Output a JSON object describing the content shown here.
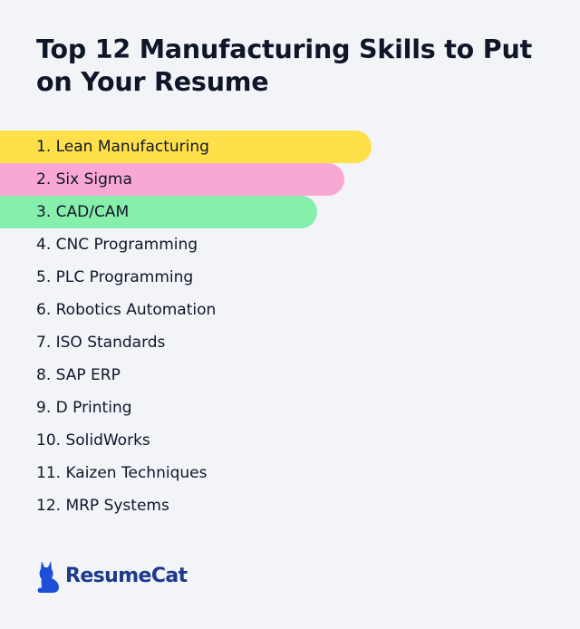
{
  "title": "Top 12 Manufacturing Skills to Put on Your Resume",
  "skills": [
    {
      "label": "1. Lean Manufacturing",
      "highlight": "#ffe04b"
    },
    {
      "label": "2. Six Sigma",
      "highlight": "#f9a8d4"
    },
    {
      "label": "3. CAD/CAM",
      "highlight": "#86efac"
    },
    {
      "label": "4. CNC Programming",
      "highlight": null
    },
    {
      "label": "5. PLC Programming",
      "highlight": null
    },
    {
      "label": "6. Robotics Automation",
      "highlight": null
    },
    {
      "label": "7. ISO Standards",
      "highlight": null
    },
    {
      "label": "8. SAP ERP",
      "highlight": null
    },
    {
      "label": "9. D Printing",
      "highlight": null
    },
    {
      "label": "10. SolidWorks",
      "highlight": null
    },
    {
      "label": "11. Kaizen Techniques",
      "highlight": null
    },
    {
      "label": "12. MRP Systems",
      "highlight": null
    }
  ],
  "brand": {
    "name": "ResumeCat",
    "icon": "cat-icon",
    "color": "#1d4ed8"
  }
}
